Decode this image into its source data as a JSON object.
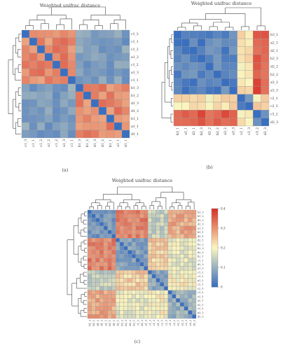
{
  "chart_data": [
    {
      "type": "heatmap",
      "panel_label": "(a)",
      "title": "Weighted unifrac distance",
      "row_labels": [
        "c1_3",
        "c1_1",
        "c1_2",
        "a1_2",
        "c1_2",
        "a1_3",
        "c1_1",
        "b1_3",
        "b1_2",
        "d1_3",
        "d1_2",
        "b1_1",
        "a1_1",
        "d1_1"
      ],
      "col_labels": [
        "c1_3",
        "c1_1",
        "c1_2",
        "a1_2",
        "c1_2",
        "a1_3",
        "c1_1",
        "b1_3",
        "b1_2",
        "d1_3",
        "d1_2",
        "b1_1",
        "a1_1",
        "d1_1"
      ],
      "groups": [
        7,
        7
      ],
      "block_values": [
        [
          0.78,
          0.18
        ],
        [
          0.18,
          0.78
        ]
      ],
      "grid": true,
      "legend": "none"
    },
    {
      "type": "heatmap",
      "panel_label": "(b)",
      "title": "Weighted unifrac distance",
      "row_labels": [
        "b3_1",
        "a2_1",
        "d2_1",
        "b2_3",
        "d2_2",
        "b2_2",
        "a3_2",
        "a3_3",
        "c2_1",
        "c2_3",
        "c3_2",
        "d2_3"
      ],
      "col_labels": [
        "b3_1",
        "a2_1",
        "d2_1",
        "b2_3",
        "d2_2",
        "b2_2",
        "a3_2",
        "a3_3",
        "c2_1",
        "c2_3",
        "c3_2",
        "d2_3"
      ],
      "groups": [
        8,
        2,
        2
      ],
      "block_values": [
        [
          0.08,
          0.55,
          0.9
        ],
        [
          0.55,
          0.12,
          0.55
        ],
        [
          0.9,
          0.55,
          0.2
        ]
      ],
      "grid": true,
      "legend": "none"
    },
    {
      "type": "heatmap",
      "panel_label": "(c)",
      "title": "Weighted unifrac distance",
      "row_labels": [
        "b1_3",
        "b1_2",
        "d1_2",
        "d1_3",
        "a1_1",
        "b1_1",
        "d1_1",
        "d2_1",
        "b2_2",
        "b2_3",
        "d2_2",
        "b2_1",
        "c1_1",
        "d2_3",
        "a1_3",
        "c1_2",
        "c1_2",
        "a1_2",
        "c2_1",
        "c2_3",
        "c1_3",
        "c2_2",
        "a2_1",
        "a2_2",
        "c2_3",
        "a3_2",
        "d2_3"
      ],
      "col_labels": [
        "b1_3",
        "b1_2",
        "d1_2",
        "d1_3",
        "a1_1",
        "b1_1",
        "d1_1",
        "d2_1",
        "b2_2",
        "b2_3",
        "d2_2",
        "b2_1",
        "c1_1",
        "d2_3",
        "a1_3",
        "c1_2",
        "c1_2",
        "a1_2",
        "c2_1",
        "c2_3",
        "c1_3",
        "c2_2",
        "a2_1",
        "a2_2",
        "c2_3",
        "a3_2",
        "d2_3"
      ],
      "groups": [
        7,
        8,
        5,
        7
      ],
      "block_values": [
        [
          0.15,
          0.8,
          0.35,
          0.7
        ],
        [
          0.8,
          0.18,
          0.6,
          0.45
        ],
        [
          0.35,
          0.6,
          0.2,
          0.5
        ],
        [
          0.7,
          0.45,
          0.5,
          0.25
        ]
      ],
      "grid": true,
      "legend": "right",
      "colorbar": {
        "ticks": [
          "0",
          "0.1",
          "0.2",
          "0.3",
          "0.4"
        ]
      }
    }
  ],
  "colors": {
    "low": "#3a6fc0",
    "mid": "#fbf6bf",
    "high": "#d93128",
    "grid": "#9a9a9a",
    "tree": "#444444"
  }
}
